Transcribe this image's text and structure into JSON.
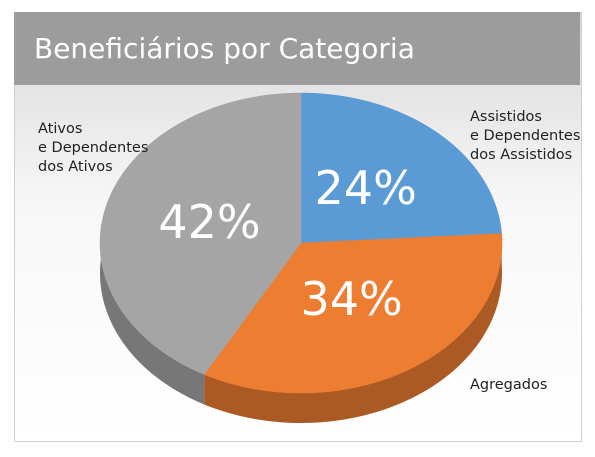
{
  "chart_data": {
    "type": "pie",
    "title": "Beneficiários por Categoria",
    "categories": [
      "Assistidos\ne Dependentes\ndos Assistidos",
      "Agregados",
      "Ativos\ne Dependentes\ndos Ativos"
    ],
    "values": [
      24,
      34,
      42
    ],
    "value_labels": [
      "24%",
      "34%",
      "42%"
    ],
    "colors": [
      "#5b9bd5",
      "#ed7d31",
      "#a5a5a5"
    ]
  }
}
